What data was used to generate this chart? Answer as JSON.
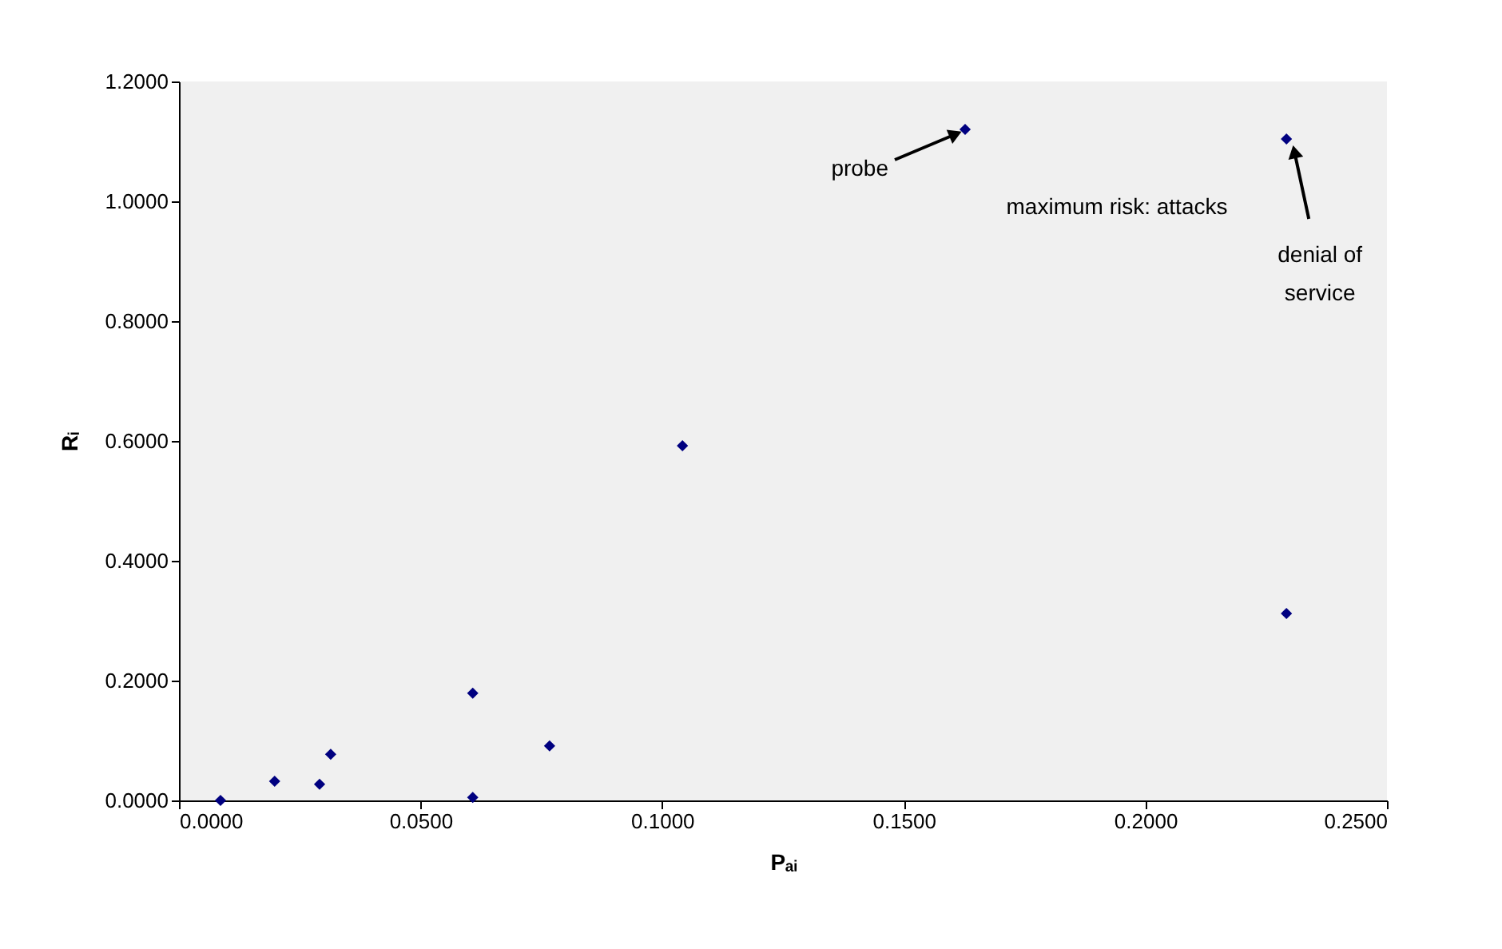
{
  "chart_data": {
    "type": "scatter",
    "xlabel": "Pₐᵢ",
    "ylabel": "Rᵢ",
    "marker": "diamond",
    "grid": false,
    "xlim": [
      0,
      0.25
    ],
    "ylim": [
      0,
      1.2
    ],
    "xticks": [
      {
        "value": 0,
        "label": "0.0000"
      },
      {
        "value": 0.05,
        "label": "0.0500"
      },
      {
        "value": 0.1,
        "label": "0.1000"
      },
      {
        "value": 0.15,
        "label": "0.1500"
      },
      {
        "value": 0.2,
        "label": "0.2000"
      },
      {
        "value": 0.25,
        "label": "0.2500"
      }
    ],
    "yticks": [
      {
        "value": 0,
        "label": "0.0000"
      },
      {
        "value": 0.2,
        "label": "0.2000"
      },
      {
        "value": 0.4,
        "label": "0.4000"
      },
      {
        "value": 0.6,
        "label": "0.6000"
      },
      {
        "value": 0.8,
        "label": "0.8000"
      },
      {
        "value": 1.0,
        "label": "1.0000"
      },
      {
        "value": 1.2,
        "label": "1.2000"
      }
    ],
    "series": [
      {
        "color": "#000080",
        "x": [
          0.0086,
          0.0198,
          0.0291,
          0.0314,
          0.0608,
          0.0608,
          0.0767,
          0.1042,
          0.1627,
          0.2292,
          0.2292
        ],
        "values": [
          0.0,
          0.032,
          0.027,
          0.077,
          0.179,
          0.005,
          0.091,
          0.592,
          1.12,
          1.104,
          0.312
        ]
      }
    ],
    "annotations": [
      {
        "text": "probe",
        "x": 0.1627,
        "y": 1.12
      },
      "maximum risk: attacks",
      {
        "text": "denial of\nservice",
        "x": 0.2292,
        "y": 1.104
      }
    ]
  }
}
